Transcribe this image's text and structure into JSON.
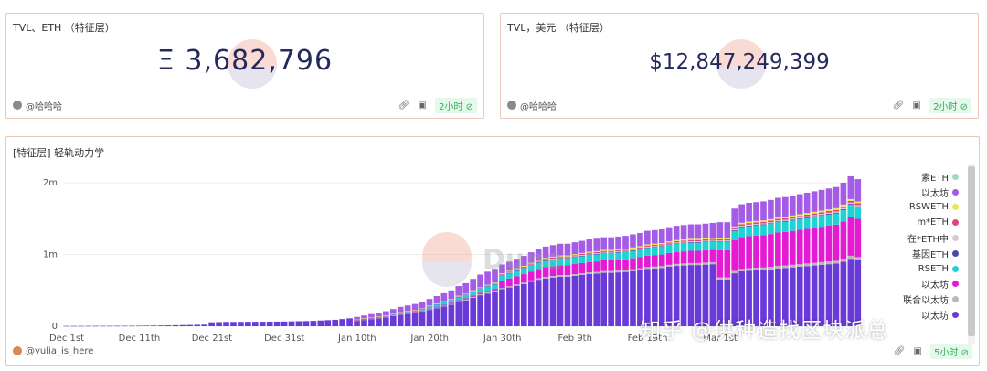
{
  "cards": {
    "tvl_eth": {
      "title": "TVL、ETH （特征层）",
      "value": "Ξ 3,682,796",
      "author": "@哈哈哈",
      "badge": "2小时 ⊘"
    },
    "tvl_usd": {
      "title": "TVL，美元 （特征层）",
      "value": "$12,847,249,399",
      "author": "@哈哈哈",
      "badge": "2小时 ⊘"
    },
    "chart_card": {
      "title": "[特征层] 轻轨动力学",
      "author": "@yulia_is_here",
      "badge": "5小时 ⊘",
      "watermark": "Dune"
    }
  },
  "overlay_text": "知乎 @供种造找区块派总",
  "chart_data": {
    "type": "bar",
    "stacked": true,
    "title": "[特征层] 轻轨动力学",
    "x_ticks": [
      "Dec 1st",
      "Dec 11th",
      "Dec 21st",
      "Dec 31st",
      "Jan 10th",
      "Jan 20th",
      "Jan 30th",
      "Feb 9th",
      "Feb 19th",
      "Mar 1st"
    ],
    "y_ticks": [
      "0",
      "1m",
      "2m"
    ],
    "ylim": [
      0,
      2000000
    ],
    "grid": true,
    "legend_position": "right",
    "series": [
      {
        "name": "素ETH",
        "color": "#9fd8c4"
      },
      {
        "name": "以太坊",
        "color": "#a45ce6"
      },
      {
        "name": "RSWETH",
        "color": "#e8e84a"
      },
      {
        "name": "m*ETH",
        "color": "#e0447f"
      },
      {
        "name": "在*ETH中",
        "color": "#d6c8cf"
      },
      {
        "name": "基因ETH",
        "color": "#4a4aa3"
      },
      {
        "name": "RSETH",
        "color": "#1fd3d3"
      },
      {
        "name": "以太坊",
        "color": "#e31cd3"
      },
      {
        "name": "联合以太坊",
        "color": "#b8b8b8"
      },
      {
        "name": "以太坊",
        "color": "#6a3ad8"
      }
    ],
    "bar_totals": [
      4000,
      4000,
      4000,
      4500,
      4500,
      5000,
      5000,
      5500,
      6000,
      6000,
      7000,
      8000,
      9000,
      10000,
      12000,
      14000,
      16000,
      18000,
      20000,
      22000,
      55000,
      58000,
      60000,
      60000,
      61000,
      62000,
      62000,
      63000,
      64000,
      65000,
      66000,
      68000,
      70000,
      72000,
      75000,
      80000,
      85000,
      90000,
      100000,
      110000,
      130000,
      150000,
      170000,
      190000,
      210000,
      240000,
      270000,
      290000,
      310000,
      340000,
      380000,
      420000,
      460000,
      500000,
      560000,
      600000,
      660000,
      720000,
      760000,
      800000,
      860000,
      900000,
      940000,
      980000,
      1030000,
      1080000,
      1110000,
      1130000,
      1150000,
      1150000,
      1170000,
      1190000,
      1210000,
      1220000,
      1240000,
      1240000,
      1250000,
      1260000,
      1280000,
      1300000,
      1330000,
      1340000,
      1350000,
      1380000,
      1400000,
      1410000,
      1420000,
      1420000,
      1430000,
      1440000,
      1450000,
      1450000,
      1640000,
      1700000,
      1720000,
      1730000,
      1740000,
      1760000,
      1790000,
      1800000,
      1820000,
      1840000,
      1860000,
      1880000,
      1900000,
      1920000,
      1940000,
      2000000,
      2090000,
      2050000
    ],
    "note_composition": "stack order bottom→top: 以太坊(purple base), 联合以太坊, 以太坊(magenta), RSETH, 基因ETH, 在*ETH中, m*ETH, RSWETH, 以太坊(lavender top)"
  }
}
